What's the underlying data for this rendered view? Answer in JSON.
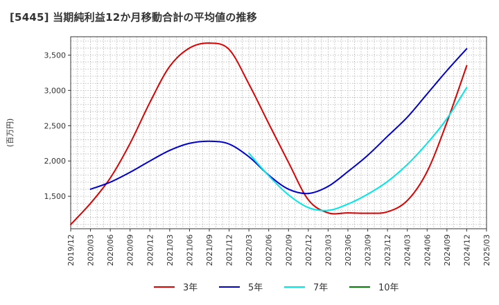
{
  "title": "[5445]  当期純利益12か月移動合計の平均値の推移",
  "chart_data": {
    "type": "line",
    "ylabel": "(百万円)",
    "xlabel": "",
    "x_ticks": [
      "2019/12",
      "2020/03",
      "2020/06",
      "2020/09",
      "2020/12",
      "2021/03",
      "2021/06",
      "2021/09",
      "2021/12",
      "2022/03",
      "2022/06",
      "2022/09",
      "2022/12",
      "2023/03",
      "2023/06",
      "2023/09",
      "2023/12",
      "2024/03",
      "2024/06",
      "2024/09",
      "2024/12",
      "2025/03"
    ],
    "y_ticks": [
      1500,
      2000,
      2500,
      3000,
      3500
    ],
    "y_tick_labels": [
      "1,500",
      "2,000",
      "2,500",
      "3,000",
      "3,500"
    ],
    "ylim": [
      1040,
      3760
    ],
    "grid": true,
    "legend_position": "bottom",
    "series": [
      {
        "name": "3年",
        "color": "#dd0000",
        "x": [
          "2019/12",
          "2020/03",
          "2020/06",
          "2020/09",
          "2020/12",
          "2021/03",
          "2021/06",
          "2021/09",
          "2021/12",
          "2022/03",
          "2022/06",
          "2022/09",
          "2022/12",
          "2023/03",
          "2023/06",
          "2023/09",
          "2023/12",
          "2024/03",
          "2024/06",
          "2024/09",
          "2024/12"
        ],
        "values": [
          1100,
          1400,
          1760,
          2250,
          2830,
          3340,
          3600,
          3670,
          3580,
          3090,
          2530,
          1980,
          1450,
          1265,
          1265,
          1260,
          1280,
          1440,
          1850,
          2550,
          3350
        ]
      },
      {
        "name": "5年",
        "color": "#0000cc",
        "x": [
          "2020/03",
          "2020/06",
          "2020/09",
          "2020/12",
          "2021/03",
          "2021/06",
          "2021/09",
          "2021/12",
          "2022/03",
          "2022/06",
          "2022/09",
          "2022/12",
          "2023/03",
          "2023/06",
          "2023/09",
          "2023/12",
          "2024/03",
          "2024/06",
          "2024/09",
          "2024/12"
        ],
        "values": [
          1600,
          1700,
          1840,
          2000,
          2150,
          2250,
          2280,
          2240,
          2060,
          1800,
          1600,
          1540,
          1640,
          1850,
          2080,
          2350,
          2620,
          2950,
          3280,
          3590
        ]
      },
      {
        "name": "7年",
        "color": "#00e5e5",
        "x": [
          "2022/03",
          "2022/06",
          "2022/09",
          "2022/12",
          "2023/03",
          "2023/06",
          "2023/09",
          "2023/12",
          "2024/03",
          "2024/06",
          "2024/09",
          "2024/12"
        ],
        "values": [
          2110,
          1790,
          1520,
          1340,
          1300,
          1390,
          1530,
          1710,
          1950,
          2250,
          2600,
          3040
        ]
      },
      {
        "name": "10年",
        "color": "#008000",
        "x": [],
        "values": []
      }
    ]
  }
}
